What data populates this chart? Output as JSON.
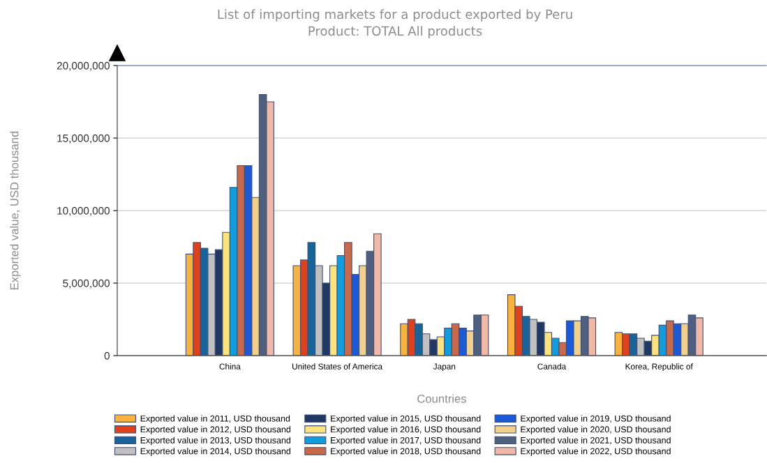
{
  "chart_data": {
    "type": "bar",
    "title": "List of importing markets for a product exported by Peru",
    "subtitle": "Product: TOTAL All products",
    "xlabel": "Countries",
    "ylabel": "Exported value, USD thousand",
    "categories": [
      "China",
      "United States of America",
      "Japan",
      "Canada",
      "Korea, Republic of"
    ],
    "series": [
      {
        "name": "Exported value in 2011, USD thousand",
        "color": "#f9b33c",
        "values": [
          7000000,
          6200000,
          2200000,
          4200000,
          1600000
        ]
      },
      {
        "name": "Exported value in 2012, USD thousand",
        "color": "#e0401a",
        "values": [
          7800000,
          6600000,
          2500000,
          3400000,
          1500000
        ]
      },
      {
        "name": "Exported value in 2013, USD thousand",
        "color": "#17649a",
        "values": [
          7400000,
          7800000,
          2200000,
          2700000,
          1500000
        ]
      },
      {
        "name": "Exported value in 2014, USD thousand",
        "color": "#c0c0c0",
        "values": [
          7000000,
          6200000,
          1500000,
          2500000,
          1200000
        ]
      },
      {
        "name": "Exported value in 2015, USD thousand",
        "color": "#1f3864",
        "values": [
          7300000,
          5000000,
          1100000,
          2300000,
          1000000
        ]
      },
      {
        "name": "Exported value in 2016, USD thousand",
        "color": "#fde37a",
        "values": [
          8500000,
          6200000,
          1300000,
          1600000,
          1400000
        ]
      },
      {
        "name": "Exported value in 2017, USD thousand",
        "color": "#109ddf",
        "values": [
          11600000,
          6900000,
          1900000,
          1200000,
          2100000
        ]
      },
      {
        "name": "Exported value in 2018, USD thousand",
        "color": "#c9694a",
        "values": [
          13100000,
          7800000,
          2200000,
          900000,
          2400000
        ]
      },
      {
        "name": "Exported value in 2019, USD thousand",
        "color": "#1a5ad9",
        "values": [
          13100000,
          5600000,
          1900000,
          2400000,
          2200000
        ]
      },
      {
        "name": "Exported value in 2020, USD thousand",
        "color": "#f2d08a",
        "values": [
          10900000,
          6200000,
          1700000,
          2400000,
          2200000
        ]
      },
      {
        "name": "Exported value in 2021, USD thousand",
        "color": "#4e5f80",
        "values": [
          18000000,
          7200000,
          2800000,
          2700000,
          2800000
        ]
      },
      {
        "name": "Exported value in 2022, USD thousand",
        "color": "#f0b8a6",
        "values": [
          17500000,
          8400000,
          2800000,
          2600000,
          2600000
        ]
      }
    ],
    "ylim": [
      0,
      20000000
    ],
    "yticks": [
      0,
      {
        "value": 5000000,
        "label": "5,000,000"
      },
      {
        "value": 10000000,
        "label": "10,000,000"
      },
      {
        "value": 15000000,
        "label": "15,000,000"
      },
      {
        "value": 20000000,
        "label": "20,000,000"
      }
    ],
    "grid": "y",
    "legend": "bottom"
  }
}
